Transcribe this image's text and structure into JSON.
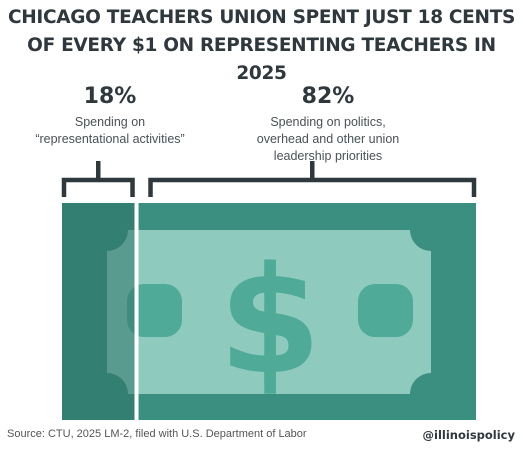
{
  "title_line1": "CHICAGO TEACHERS UNION SPENT JUST 18 CENTS",
  "title_line2": "OF EVERY $1 ON REPRESENTING TEACHERS IN 2025",
  "segments": [
    {
      "percent_label": "18%",
      "desc": [
        "Spending on",
        "“representational activities”"
      ]
    },
    {
      "percent_label": "82%",
      "desc": [
        "Spending on politics,",
        "overhead and other union",
        "leadership priorities"
      ]
    }
  ],
  "source": "Source:  CTU, 2025 LM-2, filed with U.S. Department of Labor",
  "handle": "@illinoispolicy",
  "colors": {
    "bill_dark": "#3b8f80",
    "bill_light": "#4fab98",
    "panel_light": "#8fcabf",
    "overlay": "#2d7467",
    "text": "#2f383d"
  },
  "icon": "dollar-bill",
  "chart_data": {
    "type": "bar",
    "categories": [
      "representational activities",
      "politics, overhead and other union leadership priorities"
    ],
    "values": [
      18,
      82
    ],
    "unit": "%"
  }
}
